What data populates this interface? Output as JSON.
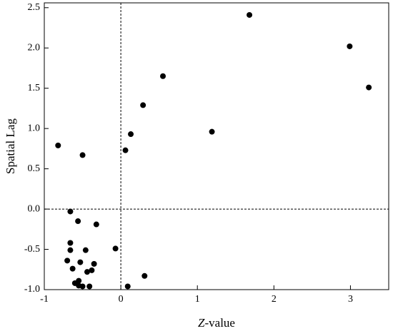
{
  "chart_data": {
    "type": "scatter",
    "xlabel": "Z-value",
    "ylabel": "Spatial Lag",
    "xlim": [
      -1,
      3.5
    ],
    "ylim": [
      -1,
      2.56
    ],
    "xticks": [
      -1,
      0,
      1,
      2,
      3
    ],
    "yticks": [
      {
        "value": -1,
        "label": "-1.0"
      },
      -0.5,
      {
        "value": 0,
        "label": "0.0"
      },
      0.5,
      {
        "value": 1,
        "label": "1.0"
      },
      1.5,
      {
        "value": 2,
        "label": "2.0"
      },
      2.5
    ],
    "ref_x": 0,
    "ref_y": 0,
    "color": "#000000",
    "series": [
      {
        "x": [
          1.68,
          2.99,
          3.24,
          0.55,
          0.29,
          0.13,
          1.19,
          0.06,
          -0.82,
          -0.5,
          -0.66,
          -0.56,
          -0.32,
          -0.07,
          -0.66,
          -0.66,
          -0.46,
          -0.7,
          -0.53,
          -0.35,
          -0.63,
          -0.38,
          -0.44,
          -0.55,
          0.31,
          -0.6,
          -0.55,
          -0.5,
          -0.41,
          0.09
        ],
        "y": [
          2.41,
          2.02,
          1.51,
          1.65,
          1.29,
          0.93,
          0.96,
          0.73,
          0.79,
          0.67,
          -0.03,
          -0.15,
          -0.19,
          -0.49,
          -0.42,
          -0.51,
          -0.51,
          -0.64,
          -0.66,
          -0.68,
          -0.74,
          -0.76,
          -0.78,
          -0.89,
          -0.83,
          -0.92,
          -0.95,
          -0.96,
          -0.96,
          -0.96
        ]
      }
    ]
  }
}
